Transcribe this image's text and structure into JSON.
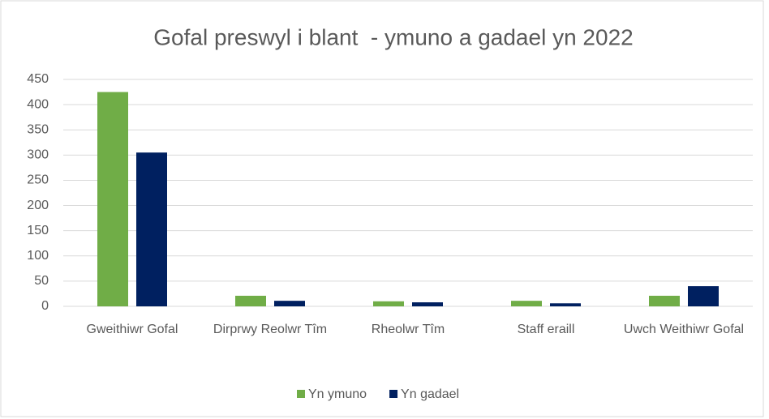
{
  "chart_data": {
    "type": "bar",
    "title": "Gofal preswyl i blant  - ymuno a gadael yn 2022",
    "categories": [
      "Gweithiwr Gofal",
      "Dirprwy Reolwr Tîm",
      "Rheolwr Tîm",
      "Staff eraill",
      "Uwch Weithiwr Gofal"
    ],
    "series": [
      {
        "name": "Yn ymuno",
        "color": "#70ad47",
        "values": [
          425,
          21,
          10,
          11,
          21
        ]
      },
      {
        "name": "Yn gadael",
        "color": "#002060",
        "values": [
          305,
          11,
          8,
          6,
          40
        ]
      }
    ],
    "ylim": [
      0,
      450
    ],
    "yticks": [
      0,
      50,
      100,
      150,
      200,
      250,
      300,
      350,
      400,
      450
    ],
    "grid": true,
    "legend": "bottom"
  }
}
